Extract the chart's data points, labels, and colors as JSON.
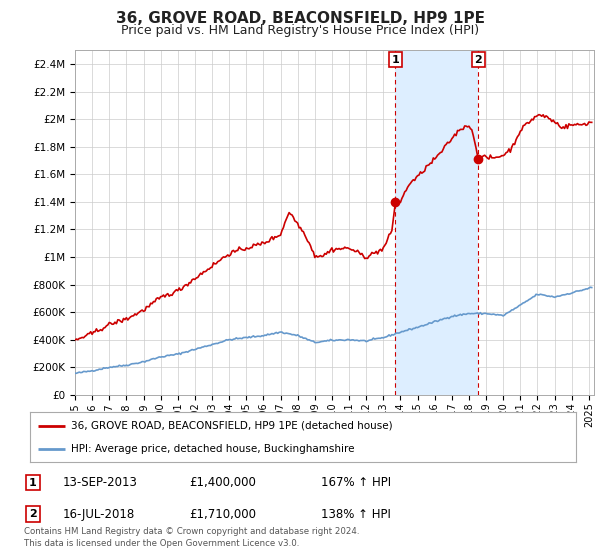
{
  "title": "36, GROVE ROAD, BEACONSFIELD, HP9 1PE",
  "subtitle": "Price paid vs. HM Land Registry's House Price Index (HPI)",
  "title_fontsize": 11,
  "subtitle_fontsize": 9,
  "background_color": "#ffffff",
  "plot_bg_color": "#ffffff",
  "grid_color": "#cccccc",
  "ylim": [
    0,
    2500000
  ],
  "yticks": [
    0,
    200000,
    400000,
    600000,
    800000,
    1000000,
    1200000,
    1400000,
    1600000,
    1800000,
    2000000,
    2200000,
    2400000
  ],
  "ytick_labels": [
    "£0",
    "£200K",
    "£400K",
    "£600K",
    "£800K",
    "£1M",
    "£1.2M",
    "£1.4M",
    "£1.6M",
    "£1.8M",
    "£2M",
    "£2.2M",
    "£2.4M"
  ],
  "red_line_color": "#cc0000",
  "blue_line_color": "#6699cc",
  "span_color": "#ddeeff",
  "marker1_date": 2013.7,
  "marker2_date": 2018.54,
  "marker1_price": 1400000,
  "marker2_price": 1710000,
  "legend_line1": "36, GROVE ROAD, BEACONSFIELD, HP9 1PE (detached house)",
  "legend_line2": "HPI: Average price, detached house, Buckinghamshire",
  "sale1_date": "13-SEP-2013",
  "sale1_price": "£1,400,000",
  "sale1_hpi": "167% ↑ HPI",
  "sale2_date": "16-JUL-2018",
  "sale2_price": "£1,710,000",
  "sale2_hpi": "138% ↑ HPI",
  "footer": "Contains HM Land Registry data © Crown copyright and database right 2024.\nThis data is licensed under the Open Government Licence v3.0.",
  "xlim_left": 1995.0,
  "xlim_right": 2025.3
}
